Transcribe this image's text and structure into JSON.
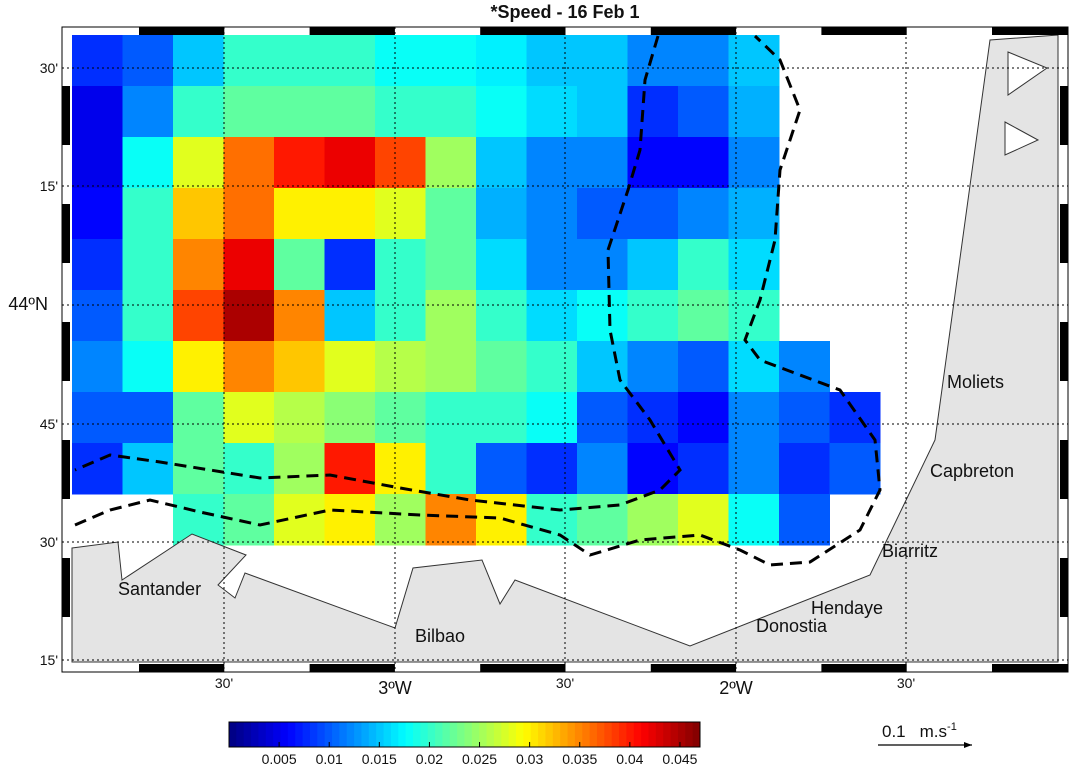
{
  "title": "*Speed - 16 Feb 1",
  "lat_labels": [
    "30'",
    "15'",
    "44ºN",
    "45'",
    "30'",
    "15'"
  ],
  "lon_labels": [
    "30'",
    "3ºW",
    "30'",
    "2ºW",
    "30'"
  ],
  "places": [
    "Moliets",
    "Capbreton",
    "Biarritz",
    "Hendaye",
    "Donostia",
    "Santander",
    "Bilbao"
  ],
  "speed_grid": [
    [
      0.008,
      0.01,
      0.015,
      0.02,
      0.02,
      0.02,
      0.018,
      0.018,
      0.017,
      0.015,
      0.015,
      0.012,
      0.012,
      0.015,
      null,
      null
    ],
    [
      0.005,
      0.012,
      0.02,
      0.022,
      0.022,
      0.022,
      0.02,
      0.02,
      0.018,
      0.016,
      0.015,
      0.008,
      0.01,
      0.014,
      null,
      null
    ],
    [
      0.005,
      0.018,
      0.028,
      0.036,
      0.04,
      0.042,
      0.038,
      0.025,
      0.015,
      0.012,
      0.012,
      0.006,
      0.006,
      0.012,
      null,
      null
    ],
    [
      0.006,
      0.02,
      0.032,
      0.036,
      0.03,
      0.03,
      0.028,
      0.022,
      0.014,
      0.012,
      0.01,
      0.01,
      0.012,
      0.014,
      null,
      null
    ],
    [
      0.008,
      0.02,
      0.035,
      0.042,
      0.022,
      0.008,
      0.02,
      0.022,
      0.016,
      0.012,
      0.012,
      0.015,
      0.02,
      0.016,
      null,
      null
    ],
    [
      0.01,
      0.02,
      0.038,
      0.045,
      0.035,
      0.015,
      0.02,
      0.025,
      0.02,
      0.016,
      0.018,
      0.02,
      0.022,
      0.02,
      null,
      null
    ],
    [
      0.012,
      0.018,
      0.03,
      0.035,
      0.032,
      0.028,
      0.026,
      0.025,
      0.022,
      0.02,
      0.015,
      0.012,
      0.01,
      0.016,
      0.012,
      null
    ],
    [
      0.01,
      0.01,
      0.022,
      0.028,
      0.026,
      0.024,
      0.022,
      0.02,
      0.02,
      0.018,
      0.01,
      0.008,
      0.006,
      0.012,
      0.01,
      0.008
    ],
    [
      0.008,
      0.015,
      0.022,
      0.02,
      0.025,
      0.04,
      0.03,
      0.02,
      0.01,
      0.008,
      0.012,
      0.006,
      0.008,
      0.012,
      0.008,
      0.01
    ],
    [
      null,
      null,
      0.02,
      0.022,
      0.028,
      0.03,
      0.025,
      0.035,
      0.03,
      0.02,
      0.022,
      0.025,
      0.028,
      0.018,
      0.01,
      null
    ]
  ],
  "clim": [
    0,
    0.047
  ],
  "colorbar_ticks": [
    0.005,
    0.01,
    0.015,
    0.02,
    0.025,
    0.03,
    0.035,
    0.04,
    0.045
  ],
  "scale": {
    "value": "0.1",
    "unit": "m.s",
    "exponent": "-1"
  }
}
